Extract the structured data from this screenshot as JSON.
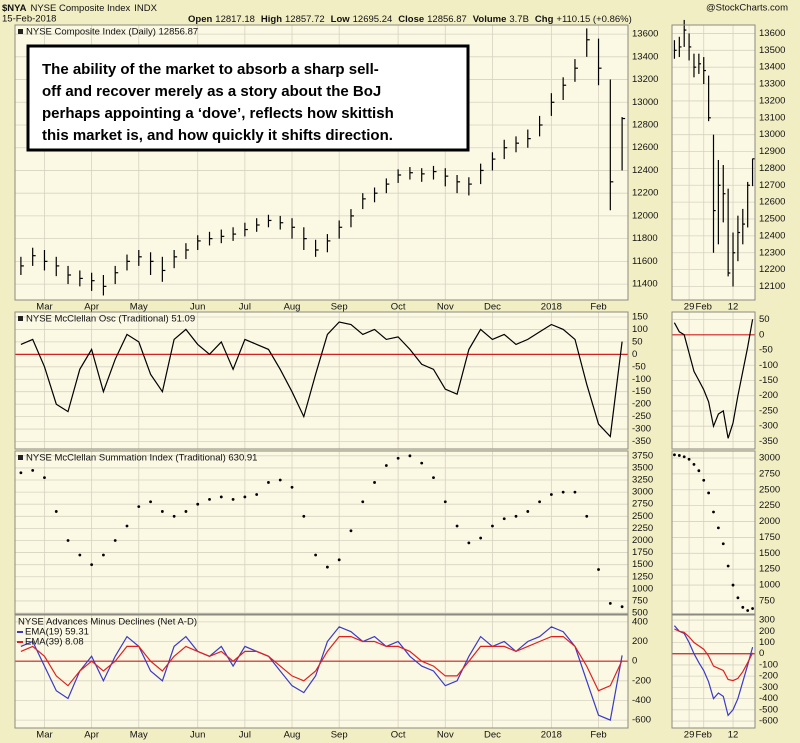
{
  "header": {
    "symbol": "$NYA",
    "name": "NYSE Composite Index",
    "exchange": "INDX",
    "date": "15-Feb-2018",
    "source": "@StockCharts.com",
    "quote": [
      {
        "label": "Open",
        "value": 12817.18
      },
      {
        "label": "High",
        "value": 12857.72
      },
      {
        "label": "Low",
        "value": 12695.24
      },
      {
        "label": "Close",
        "value": 12856.87
      },
      {
        "label": "Volume",
        "value": "3.7B"
      },
      {
        "label": "Chg",
        "value": "+110.15 (+0.86%)"
      }
    ]
  },
  "chart_data": [
    {
      "type": "ohlc",
      "title": "NYSE Composite Index (Daily) 12856.87",
      "color": "#000000",
      "grid": true,
      "annotation": [
        "The ability of the market to absorb a sharp sell-",
        "off and recover merely as a story about the BoJ",
        "perhaps appointing a ‘dove’, reflects how skittish",
        "this market is, and how quickly it shifts direction."
      ],
      "categories": [
        null,
        null,
        "Mar",
        null,
        null,
        null,
        "Apr",
        null,
        null,
        null,
        "May",
        null,
        null,
        null,
        null,
        "Jun",
        null,
        null,
        null,
        "Jul",
        null,
        null,
        null,
        "Aug",
        null,
        null,
        null,
        "Sep",
        null,
        null,
        null,
        null,
        "Oct",
        null,
        null,
        null,
        "Nov",
        null,
        null,
        null,
        "Dec",
        null,
        null,
        null,
        null,
        "2018",
        null,
        null,
        null,
        "Feb",
        null,
        null
      ],
      "high": [
        11640,
        11720,
        11700,
        11640,
        11560,
        11520,
        11500,
        11480,
        11560,
        11660,
        11700,
        11680,
        11640,
        11700,
        11760,
        11830,
        11860,
        11880,
        11900,
        11940,
        11980,
        12010,
        12000,
        11980,
        11900,
        11790,
        11840,
        11960,
        12060,
        12200,
        12250,
        12330,
        12410,
        12430,
        12420,
        12440,
        12420,
        12360,
        12340,
        12460,
        12560,
        12670,
        12700,
        12760,
        12880,
        13080,
        13220,
        13380,
        13650,
        13560,
        13200,
        12870
      ],
      "low": [
        11480,
        11560,
        11520,
        11470,
        11400,
        11380,
        11340,
        11300,
        11400,
        11520,
        11560,
        11480,
        11420,
        11540,
        11620,
        11700,
        11740,
        11760,
        11780,
        11820,
        11860,
        11900,
        11880,
        11800,
        11700,
        11640,
        11680,
        11800,
        11900,
        12060,
        12120,
        12200,
        12290,
        12320,
        12300,
        12320,
        12260,
        12200,
        12180,
        12280,
        12400,
        12500,
        12560,
        12600,
        12700,
        12880,
        13020,
        13180,
        13400,
        13150,
        12050,
        12400
      ],
      "close": [
        11560,
        11650,
        11600,
        11560,
        11480,
        11450,
        11430,
        11380,
        11500,
        11600,
        11640,
        11600,
        11520,
        11640,
        11700,
        11780,
        11800,
        11820,
        11840,
        11880,
        11920,
        11960,
        11940,
        11900,
        11800,
        11700,
        11780,
        11900,
        12000,
        12150,
        12200,
        12280,
        12360,
        12380,
        12370,
        12390,
        12350,
        12300,
        12280,
        12400,
        12500,
        12600,
        12640,
        12680,
        12800,
        13000,
        13150,
        13300,
        13550,
        13300,
        12300,
        12856.87
      ],
      "ylim": [
        11260,
        13680
      ],
      "yticks": [
        11400,
        11600,
        11800,
        12000,
        12200,
        12400,
        12600,
        12800,
        13000,
        13200,
        13400,
        13600
      ]
    },
    {
      "type": "ohlc",
      "color": "#000000",
      "grid": true,
      "categories": [
        null,
        null,
        null,
        "29",
        null,
        null,
        "Feb",
        null,
        null,
        null,
        null,
        null,
        "12",
        null,
        null,
        null,
        null
      ],
      "high": [
        13560,
        13580,
        13680,
        13600,
        13480,
        13480,
        13460,
        13350,
        13000,
        12850,
        12820,
        12680,
        12420,
        12520,
        12560,
        12720,
        12858
      ],
      "low": [
        13450,
        13460,
        13520,
        13440,
        13340,
        13360,
        13300,
        13080,
        12300,
        12350,
        12480,
        12160,
        12100,
        12250,
        12350,
        12450,
        12695
      ],
      "close": [
        13500,
        13520,
        13620,
        13520,
        13400,
        13420,
        13380,
        13100,
        12550,
        12700,
        12650,
        12180,
        12300,
        12420,
        12470,
        12700,
        12856.87
      ],
      "ylim": [
        12020,
        13650
      ],
      "yticks": [
        12100,
        12200,
        12300,
        12400,
        12500,
        12600,
        12700,
        12800,
        12900,
        13000,
        13100,
        13200,
        13300,
        13400,
        13500,
        13600
      ]
    },
    {
      "type": "line",
      "title": "NYSE McClellan Osc (Traditional) 51.09",
      "color": "#000000",
      "grid": true,
      "reference_line": 0,
      "reference_color": "#d42020",
      "values": [
        40,
        60,
        -50,
        -200,
        -230,
        -60,
        20,
        -150,
        -20,
        80,
        50,
        -80,
        -150,
        60,
        100,
        40,
        0,
        50,
        -60,
        60,
        40,
        20,
        -60,
        -150,
        -250,
        -80,
        80,
        130,
        120,
        80,
        100,
        60,
        70,
        20,
        -40,
        -60,
        -140,
        -160,
        20,
        100,
        60,
        80,
        40,
        60,
        90,
        120,
        100,
        60,
        -120,
        -280,
        -330,
        51.09
      ],
      "ylim": [
        -380,
        170
      ],
      "yticks": [
        150,
        100,
        50,
        0,
        -50,
        -100,
        -150,
        -200,
        -250,
        -300,
        -350
      ]
    },
    {
      "type": "line",
      "color": "#000000",
      "grid": true,
      "reference_line": 0,
      "reference_color": "#d42020",
      "values": [
        40,
        10,
        0,
        -60,
        -120,
        -150,
        -180,
        -220,
        -300,
        -260,
        -250,
        -340,
        -290,
        -200,
        -120,
        -40,
        51.09
      ],
      "ylim": [
        -375,
        75
      ],
      "yticks": [
        50,
        0,
        -50,
        -100,
        -150,
        -200,
        -250,
        -300,
        -350
      ]
    },
    {
      "type": "dots",
      "title": "NYSE McClellan Summation Index (Traditional) 630.91",
      "color": "#000000",
      "grid": true,
      "values": [
        3400,
        3450,
        3300,
        2600,
        2000,
        1700,
        1500,
        1700,
        2000,
        2300,
        2700,
        2800,
        2600,
        2500,
        2600,
        2750,
        2850,
        2900,
        2850,
        2900,
        2950,
        3200,
        3250,
        3100,
        2500,
        1700,
        1450,
        1600,
        2200,
        2800,
        3200,
        3550,
        3700,
        3750,
        3600,
        3300,
        2800,
        2300,
        1950,
        2050,
        2300,
        2450,
        2500,
        2600,
        2800,
        2950,
        3000,
        3000,
        2500,
        1400,
        700,
        630.91
      ],
      "ylim": [
        480,
        3850
      ],
      "yticks": [
        500,
        750,
        1000,
        1250,
        1500,
        1750,
        2000,
        2250,
        2500,
        2750,
        3000,
        3250,
        3500,
        3750
      ]
    },
    {
      "type": "dots",
      "color": "#000000",
      "grid": true,
      "values": [
        3050,
        3040,
        3020,
        2980,
        2900,
        2800,
        2650,
        2450,
        2150,
        1900,
        1650,
        1300,
        1000,
        800,
        650,
        600,
        630.91
      ],
      "ylim": [
        545,
        3110
      ],
      "yticks": [
        750,
        1000,
        1250,
        1500,
        1750,
        2000,
        2250,
        2500,
        2750,
        3000
      ]
    },
    {
      "type": "line",
      "title": "NYSE Advances Minus Declines (Net A-D)",
      "grid": true,
      "reference_line": 0,
      "reference_color": "#d42020",
      "categories": [
        null,
        null,
        "Mar",
        null,
        null,
        null,
        "Apr",
        null,
        null,
        null,
        "May",
        null,
        null,
        null,
        null,
        "Jun",
        null,
        null,
        null,
        "Jul",
        null,
        null,
        null,
        "Aug",
        null,
        null,
        null,
        "Sep",
        null,
        null,
        null,
        null,
        "Oct",
        null,
        null,
        null,
        "Nov",
        null,
        null,
        null,
        "Dec",
        null,
        null,
        null,
        null,
        "2018",
        null,
        null,
        null,
        "Feb",
        null,
        null
      ],
      "series": [
        {
          "name": "EMA(19) 59.31",
          "color": "#3a3ac8",
          "values": [
            150,
            200,
            -50,
            -300,
            -380,
            -100,
            50,
            -200,
            50,
            250,
            150,
            -100,
            -200,
            150,
            250,
            100,
            50,
            150,
            -50,
            150,
            100,
            50,
            -100,
            -250,
            -320,
            -150,
            200,
            350,
            300,
            200,
            250,
            150,
            200,
            50,
            -50,
            -100,
            -250,
            -200,
            50,
            250,
            150,
            200,
            100,
            200,
            250,
            350,
            300,
            150,
            -200,
            -550,
            -600,
            59.31
          ]
        },
        {
          "name": "EMA(39) 8.08",
          "color": "#e02020",
          "values": [
            100,
            150,
            50,
            -150,
            -250,
            -100,
            0,
            -100,
            0,
            150,
            150,
            0,
            -100,
            50,
            150,
            100,
            50,
            100,
            0,
            100,
            100,
            50,
            -50,
            -150,
            -200,
            -100,
            100,
            250,
            250,
            200,
            200,
            150,
            150,
            100,
            0,
            -50,
            -150,
            -150,
            0,
            150,
            150,
            150,
            100,
            150,
            200,
            250,
            250,
            150,
            -50,
            -300,
            -250,
            8.08
          ]
        }
      ],
      "ylim": [
        -680,
        470
      ],
      "yticks": [
        -600,
        -400,
        -200,
        0,
        200,
        400
      ]
    },
    {
      "type": "line",
      "grid": true,
      "reference_line": 0,
      "reference_color": "#d42020",
      "categories": [
        null,
        null,
        null,
        "29",
        null,
        null,
        "Feb",
        null,
        null,
        null,
        null,
        null,
        "12",
        null,
        null,
        null,
        null
      ],
      "series": [
        {
          "color": "#3a3ac8",
          "values": [
            250,
            200,
            180,
            100,
            0,
            -80,
            -150,
            -250,
            -400,
            -350,
            -380,
            -550,
            -500,
            -400,
            -250,
            -100,
            59.31
          ]
        },
        {
          "color": "#e02020",
          "values": [
            220,
            200,
            190,
            150,
            100,
            70,
            40,
            -20,
            -110,
            -130,
            -150,
            -230,
            -240,
            -220,
            -160,
            -80,
            8.08
          ]
        }
      ],
      "ylim": [
        -662,
        345
      ],
      "yticks": [
        -600,
        -500,
        -400,
        -300,
        -200,
        -100,
        0,
        100,
        200,
        300
      ]
    }
  ]
}
